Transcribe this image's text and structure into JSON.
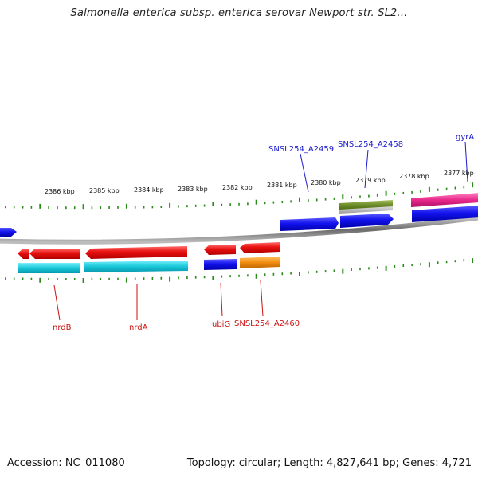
{
  "header": {
    "title": "Salmonella enterica subsp. enterica serovar Newport str. SL2..."
  },
  "footer": {
    "accession": "Accession: NC_011080",
    "summary": "Topology: circular; Length: 4,827,641 bp; Genes: 4,721"
  },
  "scale": {
    "unit": "kbp",
    "labels": [
      "2386 kbp",
      "2385 kbp",
      "2384 kbp",
      "2383 kbp",
      "2382 kbp",
      "2381 kbp",
      "2380 kbp",
      "2379 kbp",
      "2378 kbp",
      "2377 kbp"
    ]
  },
  "colors": {
    "forward_label": "#1a1acc",
    "reverse_label": "#cc1111",
    "backbone": "#8a8a8a",
    "tick": "#2a8a1a",
    "cds": "#e01010",
    "cog_blue": "#1010e0",
    "cog_cyan": "#18c8d8",
    "cog_orange": "#f08c10",
    "cog_olive": "#6a8a28",
    "cog_gray": "#b0b0b0",
    "cog_magenta": "#e8288a"
  },
  "genes": {
    "forward": [
      {
        "name": "SNSL254_A2459"
      },
      {
        "name": "SNSL254_A2458"
      },
      {
        "name": "gyrA"
      }
    ],
    "reverse": [
      {
        "name": "nrdB"
      },
      {
        "name": "nrdA"
      },
      {
        "name": "ubiG"
      },
      {
        "name": "SNSL254_A2460"
      }
    ]
  }
}
